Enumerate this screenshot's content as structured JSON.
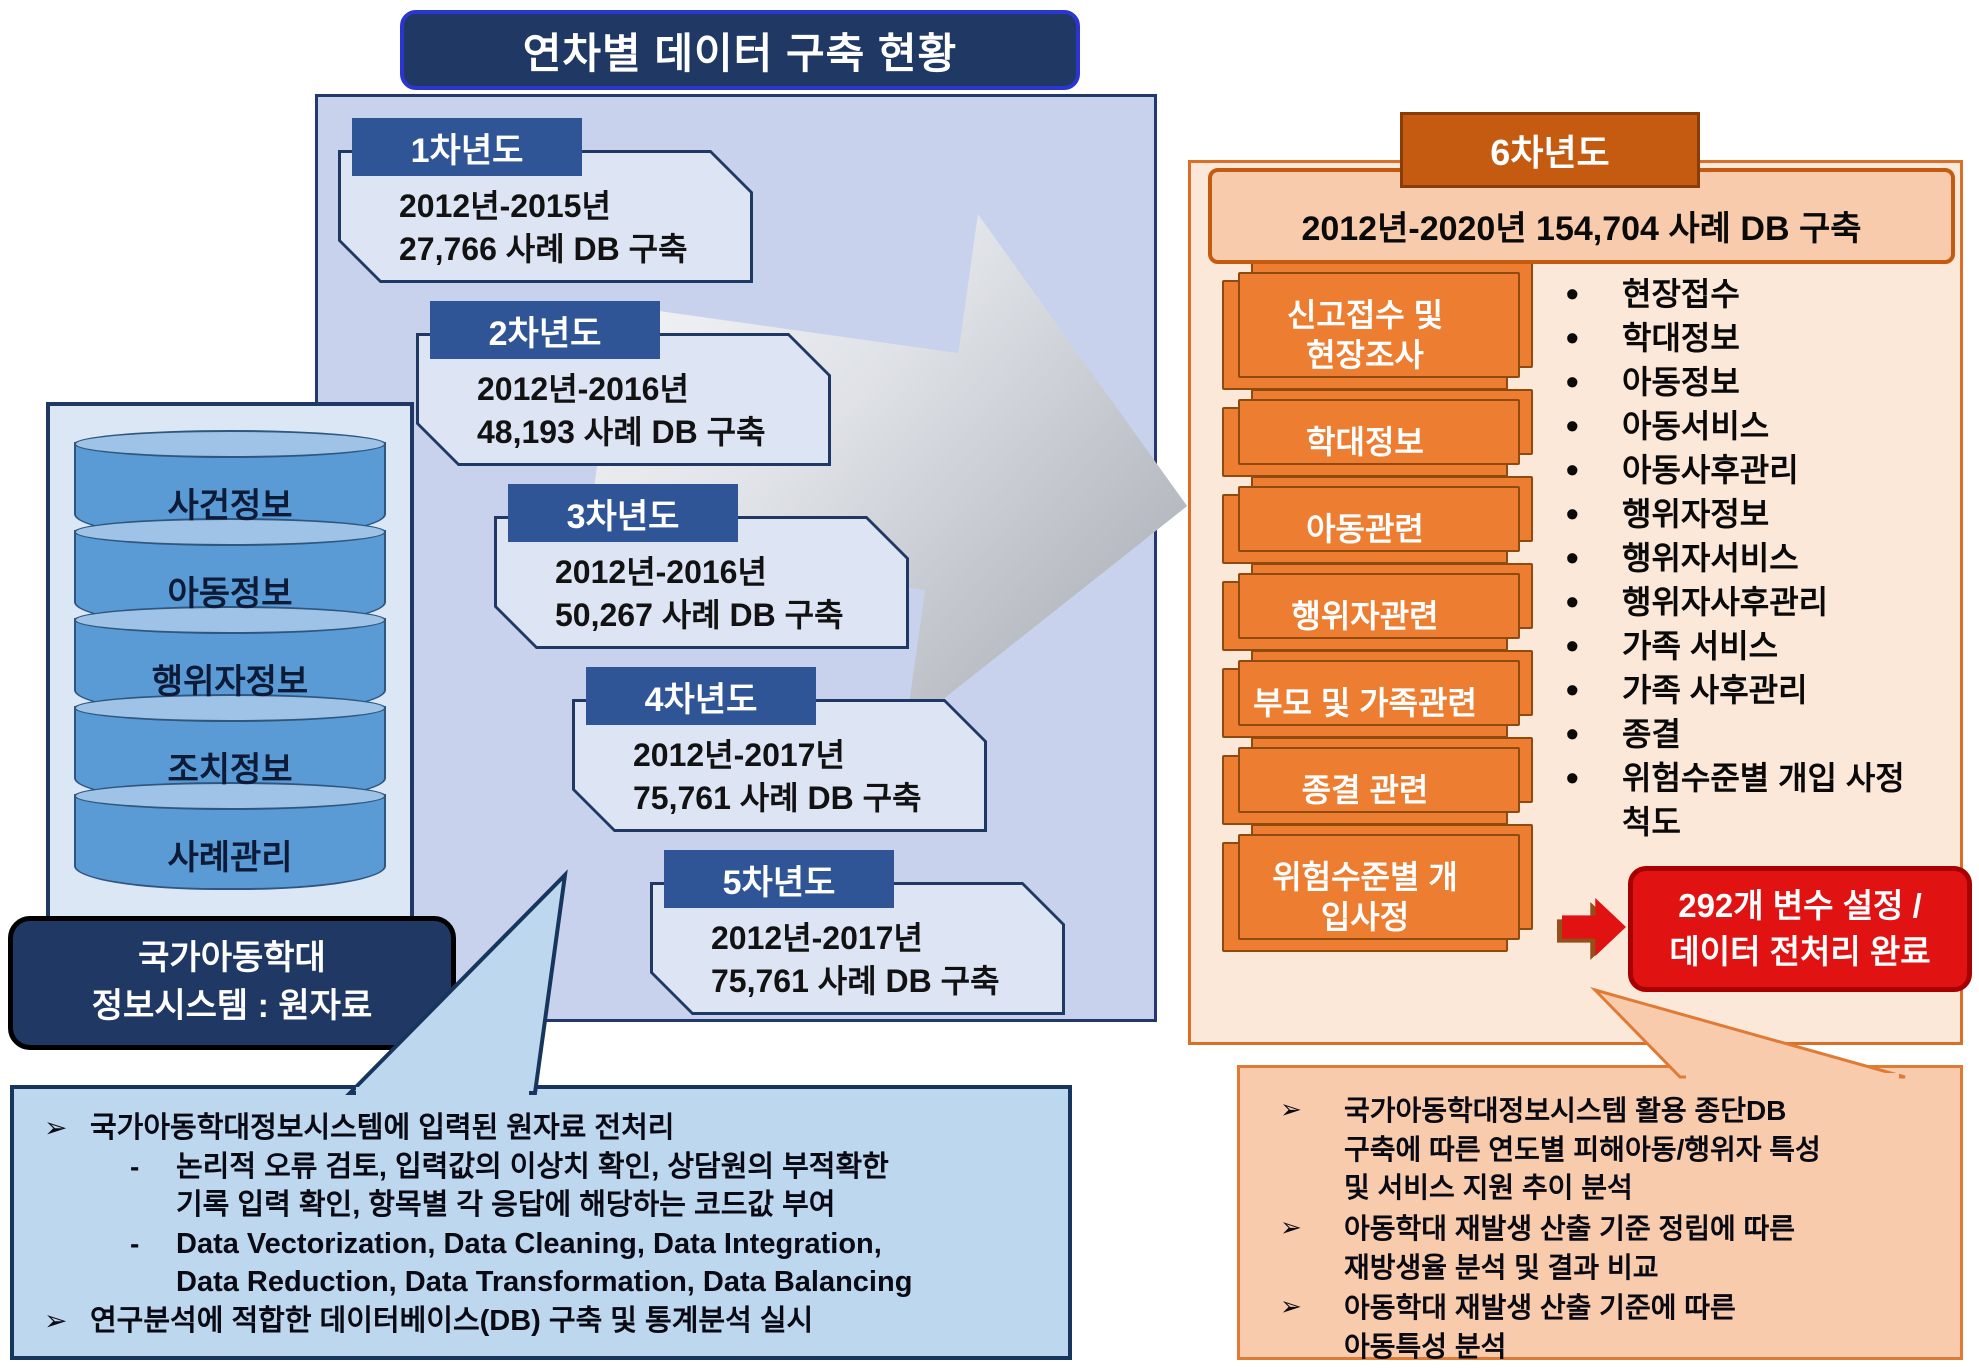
{
  "title": "연차별 데이터 구축 현황",
  "source_db": {
    "cylinders": [
      "사건정보",
      "아동정보",
      "행위자정보",
      "조치정보",
      "사례관리"
    ],
    "caption_lines": [
      "국가아동학대",
      "정보시스템 : 원자료"
    ]
  },
  "years": [
    {
      "label": "1차년도",
      "period": "2012년-2015년",
      "result": "27,766 사례 DB 구축"
    },
    {
      "label": "2차년도",
      "period": "2012년-2016년",
      "result": "48,193 사례 DB 구축"
    },
    {
      "label": "3차년도",
      "period": "2012년-2016년",
      "result": "50,267 사례 DB 구축"
    },
    {
      "label": "4차년도",
      "period": "2012년-2017년",
      "result": "75,761 사례 DB 구축"
    },
    {
      "label": "5차년도",
      "period": "2012년-2017년",
      "result": "75,761 사례 DB 구축"
    }
  ],
  "year6": {
    "label": "6차년도",
    "summary": "2012년-2020년 154,704 사례 DB 구축",
    "modules": [
      [
        "신고접수 및",
        "현장조사"
      ],
      [
        "학대정보"
      ],
      [
        "아동관련"
      ],
      [
        "행위자관련"
      ],
      [
        "부모 및 가족관련"
      ],
      [
        "종결 관련"
      ],
      [
        "위험수준별 개",
        "입사정"
      ]
    ],
    "fields": [
      "현장접수",
      "학대정보",
      "아동정보",
      "아동서비스",
      "아동사후관리",
      "행위자정보",
      "행위자서비스",
      "행위자사후관리",
      "가족 서비스",
      "가족 사후관리",
      "종결",
      "위험수준별 개입 사정척도"
    ],
    "highlight_lines": [
      "292개 변수 설정 /",
      "데이터 전처리 완료"
    ]
  },
  "notes": {
    "left_items": [
      {
        "marker": "➢",
        "level": 0,
        "lines": [
          "국가아동학대정보시스템에 입력된 원자료 전처리"
        ]
      },
      {
        "marker": "-",
        "level": 1,
        "lines": [
          "논리적 오류 검토, 입력값의 이상치 확인, 상담원의 부적확한",
          "기록 입력 확인, 항목별 각 응답에 해당하는 코드값 부여"
        ]
      },
      {
        "marker": "-",
        "level": 1,
        "lines": [
          "Data Vectorization, Data Cleaning, Data Integration,",
          "Data Reduction, Data Transformation, Data Balancing"
        ]
      },
      {
        "marker": "➢",
        "level": 0,
        "lines": [
          "연구분석에 적합한 데이터베이스(DB) 구축 및 통계분석 실시"
        ]
      }
    ],
    "right_items": [
      {
        "marker": "➢",
        "level": 0,
        "lines": [
          "국가아동학대정보시스템 활용 종단DB",
          "구축에 따른 연도별 피해아동/행위자 특성",
          "및 서비스 지원 추이 분석"
        ]
      },
      {
        "marker": "➢",
        "level": 0,
        "lines": [
          "아동학대 재발생 산출 기준 정립에 따른",
          "재방생율 분석 및 결과 비교"
        ]
      },
      {
        "marker": "➢",
        "level": 0,
        "lines": [
          "아동학대 재발생 산출 기준에 따른",
          "아동특성 분석"
        ]
      }
    ]
  },
  "colors": {
    "navy": "#1f3864",
    "year_label_blue": "#2f5597",
    "panel_blue": "#c8d2ec",
    "note_blue": "#bdd7ee",
    "orange": "#ed7d31",
    "dark_orange": "#c55a11",
    "panel_peach": "#fce8d9",
    "note_peach": "#f8cbad",
    "highlight_red": "#e11212"
  }
}
